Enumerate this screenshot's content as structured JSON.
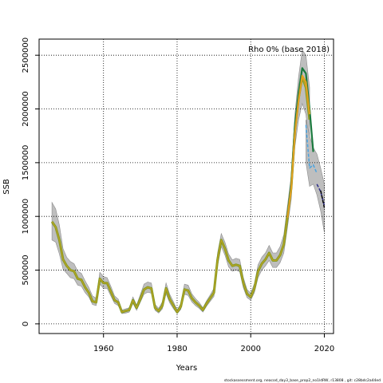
{
  "chart_data": {
    "type": "line",
    "title": "",
    "xlabel": "Years",
    "ylabel": "SSB",
    "xlim": [
      1942.5,
      2022.5
    ],
    "ylim": [
      -90000,
      2650000
    ],
    "grid": true,
    "x_ticks": [
      {
        "value": 1960,
        "label": "1960"
      },
      {
        "value": 1980,
        "label": "1980"
      },
      {
        "value": 2000,
        "label": "2000"
      },
      {
        "value": 2020,
        "label": "2020"
      }
    ],
    "y_ticks": [
      {
        "value": 0,
        "label": "0"
      },
      {
        "value": 500000,
        "label": "500000"
      },
      {
        "value": 1000000,
        "label": "1000000"
      },
      {
        "value": 1500000,
        "label": "1500000"
      },
      {
        "value": 2000000,
        "label": "2000000"
      },
      {
        "value": 2500000,
        "label": "2500000"
      }
    ],
    "annotation": "Rho 0% (base 2018)",
    "caption": "stockassessment.org, neacod_day3_base_prop2_no1ldRW, r13808 , git: c28bdc2a44ed",
    "colors": {
      "band": "#bebebe",
      "band_edge": "#8c8c8c",
      "base": "#7f9c1e",
      "base_inner": "#c9a227",
      "peel_green": "#1b7a3e",
      "peel_orange": "#e0a020",
      "peel_blue": "#4aa3df",
      "peel_navy": "#2c2c8a",
      "peel_black": "#000000",
      "grid": "#000000"
    },
    "series": [
      {
        "role": "base",
        "x": [
          1946,
          1947,
          1948,
          1949,
          1950,
          1951,
          1952,
          1953,
          1954,
          1955,
          1956,
          1957,
          1958,
          1959,
          1960,
          1961,
          1962,
          1963,
          1964,
          1965,
          1966,
          1967,
          1968,
          1969,
          1970,
          1971,
          1972,
          1973,
          1974,
          1975,
          1976,
          1977,
          1978,
          1979,
          1980,
          1981,
          1982,
          1983,
          1984,
          1985,
          1986,
          1987,
          1988,
          1989,
          1990,
          1991,
          1992,
          1993,
          1994,
          1995,
          1996,
          1997,
          1998,
          1999,
          2000,
          2001,
          2002,
          2003,
          2004,
          2005,
          2006,
          2007,
          2008,
          2009,
          2010,
          2011,
          2012,
          2013,
          2014,
          2015,
          2016
        ],
        "y": [
          950000,
          900000,
          780000,
          600000,
          540000,
          500000,
          490000,
          420000,
          410000,
          340000,
          290000,
          210000,
          200000,
          420000,
          380000,
          380000,
          300000,
          220000,
          200000,
          110000,
          120000,
          130000,
          220000,
          150000,
          230000,
          320000,
          340000,
          330000,
          150000,
          120000,
          170000,
          330000,
          230000,
          170000,
          110000,
          160000,
          320000,
          310000,
          240000,
          200000,
          170000,
          130000,
          190000,
          240000,
          290000,
          600000,
          780000,
          700000,
          590000,
          540000,
          550000,
          540000,
          380000,
          280000,
          250000,
          330000,
          490000,
          560000,
          600000,
          660000,
          590000,
          590000,
          640000,
          740000,
          1000000,
          1270000,
          1800000,
          2100000,
          2300000,
          2200000,
          1900000
        ],
        "upper": [
          1130000,
          1070000,
          920000,
          700000,
          620000,
          580000,
          560000,
          490000,
          470000,
          400000,
          340000,
          260000,
          240000,
          480000,
          440000,
          430000,
          350000,
          260000,
          230000,
          130000,
          140000,
          150000,
          250000,
          175000,
          270000,
          370000,
          390000,
          380000,
          180000,
          145000,
          205000,
          380000,
          275000,
          205000,
          130000,
          190000,
          370000,
          360000,
          280000,
          235000,
          200000,
          150000,
          215000,
          270000,
          330000,
          660000,
          840000,
          760000,
          650000,
          595000,
          610000,
          600000,
          430000,
          320000,
          285000,
          375000,
          550000,
          620000,
          660000,
          730000,
          660000,
          660000,
          720000,
          830000,
          1100000,
          1380000,
          1950000,
          2300000,
          2550000,
          2500000,
          2200000
        ],
        "lower": [
          780000,
          760000,
          650000,
          510000,
          470000,
          430000,
          420000,
          360000,
          350000,
          290000,
          250000,
          180000,
          170000,
          370000,
          330000,
          330000,
          260000,
          190000,
          170000,
          95000,
          100000,
          110000,
          190000,
          125000,
          200000,
          275000,
          295000,
          285000,
          125000,
          100000,
          140000,
          280000,
          195000,
          140000,
          95000,
          135000,
          275000,
          265000,
          205000,
          170000,
          145000,
          110000,
          165000,
          210000,
          255000,
          540000,
          720000,
          640000,
          530000,
          490000,
          500000,
          485000,
          335000,
          245000,
          220000,
          290000,
          430000,
          500000,
          540000,
          590000,
          525000,
          525000,
          570000,
          660000,
          900000,
          1160000,
          1650000,
          1900000,
          2050000,
          1950000,
          1650000
        ]
      },
      {
        "role": "peel",
        "name": "",
        "x": [
          2010,
          2011,
          2012,
          2013,
          2014,
          2015,
          2016,
          2017
        ],
        "y": [
          1000000,
          1300000,
          1850000,
          2150000,
          2380000,
          2330000,
          2000000,
          1600000
        ]
      },
      {
        "role": "peel",
        "name": "",
        "x": [
          2010,
          2011,
          2012,
          2013,
          2014,
          2015,
          2016
        ],
        "y": [
          990000,
          1260000,
          1780000,
          2080000,
          2310000,
          2250000,
          1950000
        ]
      },
      {
        "role": "peel",
        "name": "",
        "x": [
          2015,
          2016,
          2017,
          2018
        ],
        "y": [
          1850000,
          1450000,
          1480000,
          1400000
        ]
      },
      {
        "role": "peel",
        "name": "",
        "x": [
          2018,
          2019,
          2020
        ],
        "y": [
          1300000,
          1230000,
          1100000
        ]
      },
      {
        "role": "peel",
        "name": "",
        "x": [
          2019,
          2020
        ],
        "y": [
          1240000,
          1080000
        ]
      }
    ],
    "extra_bands": [
      {
        "x": [
          2015,
          2016,
          2017,
          2018,
          2019,
          2020
        ],
        "upper": [
          1900000,
          1750000,
          1640000,
          1580000,
          1450000,
          1300000
        ],
        "lower": [
          1500000,
          1280000,
          1300000,
          1200000,
          1050000,
          850000
        ]
      }
    ]
  }
}
